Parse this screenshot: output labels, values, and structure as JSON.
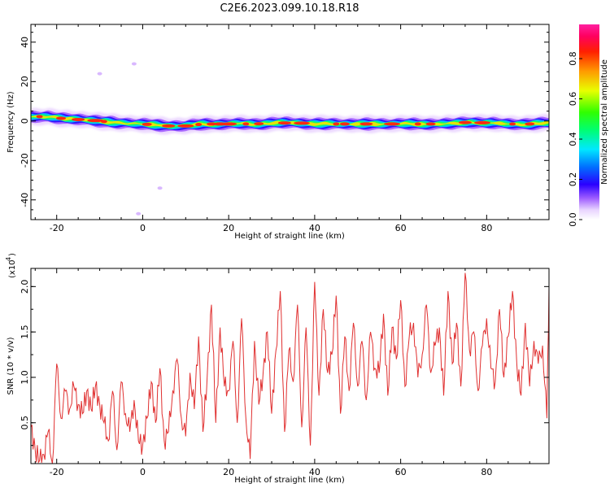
{
  "title": "C2E6.2023.099.10.18.R18",
  "colors": {
    "snr_line": "#e03030",
    "axis": "#000000"
  },
  "chart_data": [
    {
      "type": "heatmap",
      "ylabel": "Frequency (Hz)",
      "xlabel": "Height of straight line (km)",
      "xlim": [
        -26,
        94.5
      ],
      "ylim": [
        -50,
        49
      ],
      "x_ticks": [
        -20,
        0,
        20,
        40,
        60,
        80
      ],
      "x_tick_labels": [
        "-20",
        "0",
        "20",
        "40",
        "60",
        "80"
      ],
      "y_ticks": [
        -40,
        -20,
        0,
        20,
        40
      ],
      "y_tick_labels": [
        "-40",
        "-20",
        "0",
        "20",
        "40"
      ],
      "band_center_hz": [
        [
          -26,
          2
        ],
        [
          -22,
          2.5
        ],
        [
          -18,
          1
        ],
        [
          -12,
          0.5
        ],
        [
          -6,
          -1
        ],
        [
          0,
          -1.5
        ],
        [
          6,
          -2.5
        ],
        [
          10,
          -2.5
        ],
        [
          14,
          -1.5
        ],
        [
          20,
          -1.5
        ],
        [
          26,
          -1.5
        ],
        [
          30,
          -1
        ],
        [
          36,
          -1
        ],
        [
          42,
          -1.5
        ],
        [
          48,
          -1.5
        ],
        [
          54,
          -1.5
        ],
        [
          60,
          -1.5
        ],
        [
          66,
          -1.5
        ],
        [
          72,
          -1.5
        ],
        [
          76,
          -0.5
        ],
        [
          80,
          -1
        ],
        [
          84,
          -1.5
        ],
        [
          90,
          -1.5
        ],
        [
          94.5,
          -1
        ]
      ],
      "colorbar": {
        "label": "Normalized spectral amplitude",
        "range": [
          0,
          0.97
        ],
        "ticks": [
          0.0,
          0.2,
          0.4,
          0.6,
          0.8
        ],
        "tick_labels": [
          "0.0",
          "0.2",
          "0.4",
          "0.6",
          "0.8"
        ]
      }
    },
    {
      "type": "line",
      "ylabel": "SNR (10 * v/v)",
      "y_exponent": "(x10",
      "y_exponent_power": "4",
      "xlabel": "Height of straight line (km)",
      "xlim": [
        -26,
        94.5
      ],
      "ylim": [
        0.05,
        2.2
      ],
      "x_ticks": [
        -20,
        0,
        20,
        40,
        60,
        80
      ],
      "x_tick_labels": [
        "-20",
        "0",
        "20",
        "40",
        "60",
        "80"
      ],
      "y_ticks": [
        0.5,
        1.0,
        1.5,
        2.0
      ],
      "y_tick_labels": [
        "0.5",
        "1.0",
        "1.5",
        "2.0"
      ],
      "series": [
        {
          "x": [
            -26,
            -25,
            -24,
            -23,
            -22,
            -21,
            -20,
            -19,
            -18,
            -17,
            -16,
            -15,
            -14,
            -13,
            -12,
            -11,
            -10,
            -9,
            -8,
            -7,
            -6,
            -5,
            -4,
            -3,
            -2,
            -1,
            0,
            1,
            2,
            3,
            4,
            5,
            6,
            7,
            8,
            9,
            10,
            11,
            12,
            13,
            14,
            15,
            16,
            17,
            18,
            19,
            20,
            21,
            22,
            23,
            24,
            25,
            26,
            27,
            28,
            29,
            30,
            31,
            32,
            33,
            34,
            35,
            36,
            37,
            38,
            39,
            40,
            41,
            42,
            43,
            44,
            45,
            46,
            47,
            48,
            49,
            50,
            51,
            52,
            53,
            54,
            55,
            56,
            57,
            58,
            59,
            60,
            61,
            62,
            63,
            64,
            65,
            66,
            67,
            68,
            69,
            70,
            71,
            72,
            73,
            74,
            75,
            76,
            77,
            78,
            79,
            80,
            81,
            82,
            83,
            84,
            85,
            86,
            87,
            88,
            89,
            90,
            91,
            92,
            93,
            94,
            94.5
          ],
          "y": [
            0.45,
            0.2,
            0.08,
            0.15,
            0.4,
            0.05,
            1.15,
            0.55,
            0.85,
            0.65,
            0.9,
            0.7,
            0.6,
            0.85,
            0.65,
            0.9,
            0.7,
            0.5,
            0.3,
            0.85,
            0.2,
            0.95,
            0.6,
            0.4,
            0.75,
            0.3,
            0.25,
            0.55,
            0.95,
            0.5,
            1.1,
            0.3,
            0.4,
            0.85,
            1.2,
            0.55,
            0.35,
            1.05,
            0.65,
            1.45,
            0.4,
            1.0,
            1.8,
            0.5,
            1.55,
            0.9,
            0.85,
            1.4,
            0.5,
            1.65,
            0.55,
            0.1,
            1.4,
            0.7,
            1.05,
            1.5,
            0.6,
            1.3,
            1.95,
            0.4,
            1.3,
            0.95,
            1.8,
            0.45,
            1.55,
            0.25,
            2.05,
            0.8,
            1.75,
            1.05,
            1.25,
            1.9,
            0.6,
            1.45,
            0.85,
            1.6,
            0.9,
            1.4,
            0.75,
            1.5,
            1.1,
            1.05,
            1.7,
            0.8,
            1.55,
            1.2,
            1.85,
            0.9,
            1.45,
            1.6,
            1.0,
            1.25,
            1.8,
            1.05,
            1.35,
            1.55,
            0.8,
            1.95,
            1.15,
            1.6,
            0.9,
            2.15,
            1.3,
            1.5,
            0.85,
            1.35,
            1.65,
            1.1,
            0.95,
            1.75,
            1.0,
            1.45,
            1.95,
            1.15,
            0.8,
            1.6,
            0.9,
            1.4,
            1.15,
            1.35,
            0.55,
            2.0
          ]
        }
      ]
    }
  ]
}
